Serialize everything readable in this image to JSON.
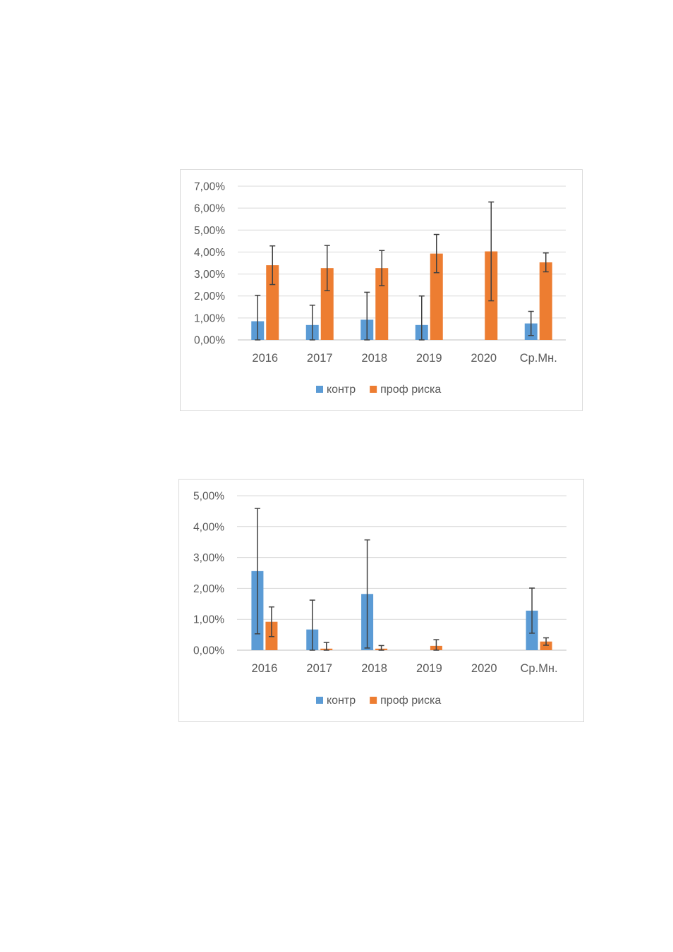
{
  "chart_data": [
    {
      "type": "bar",
      "categories": [
        "2016",
        "2017",
        "2018",
        "2019",
        "2020",
        "Ср.Мн."
      ],
      "ylim": [
        0,
        7
      ],
      "yticks": [
        "0,00%",
        "1,00%",
        "2,00%",
        "3,00%",
        "4,00%",
        "5,00%",
        "6,00%",
        "7,00%"
      ],
      "grid": true,
      "legend_position": "bottom",
      "series": [
        {
          "name": "контр",
          "color": "#5b9bd5",
          "values": [
            0.85,
            0.68,
            0.92,
            0.68,
            null,
            0.75
          ],
          "error": [
            1.18,
            0.9,
            1.25,
            1.32,
            null,
            0.55
          ]
        },
        {
          "name": "проф риска",
          "color": "#ed7d31",
          "values": [
            3.4,
            3.27,
            3.27,
            3.93,
            4.03,
            3.53
          ],
          "error": [
            0.88,
            1.03,
            0.8,
            0.87,
            2.25,
            0.43
          ]
        }
      ]
    },
    {
      "type": "bar",
      "categories": [
        "2016",
        "2017",
        "2018",
        "2019",
        "2020",
        "Ср.Мн."
      ],
      "ylim": [
        0,
        5
      ],
      "yticks": [
        "0,00%",
        "1,00%",
        "2,00%",
        "3,00%",
        "4,00%",
        "5,00%"
      ],
      "grid": true,
      "legend_position": "bottom",
      "series": [
        {
          "name": "контр",
          "color": "#5b9bd5",
          "values": [
            2.56,
            0.67,
            1.82,
            null,
            null,
            1.28
          ],
          "error": [
            2.03,
            0.95,
            1.75,
            null,
            null,
            0.73
          ]
        },
        {
          "name": "проф риска",
          "color": "#ed7d31",
          "values": [
            0.92,
            0.05,
            0.05,
            0.14,
            null,
            0.28
          ],
          "error": [
            0.48,
            0.2,
            0.1,
            0.2,
            null,
            0.12
          ]
        }
      ]
    }
  ]
}
